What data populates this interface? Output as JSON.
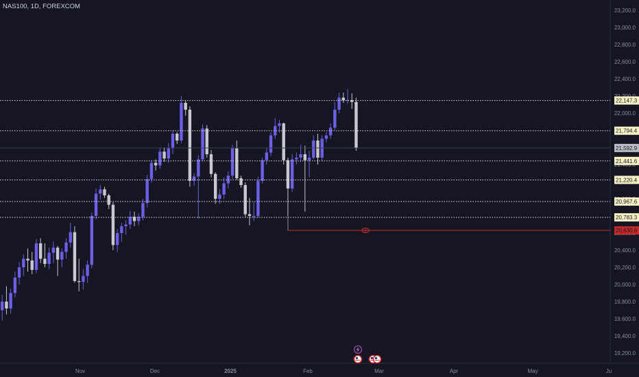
{
  "header": {
    "symbol_title": "NAS100, 1D, FOREXCOM"
  },
  "colors": {
    "background": "#161622",
    "up_candle": "#6a5fe6",
    "down_candle": "#c8c8d0",
    "level_line": "#e0e0e0",
    "level_label_bg": "#f6f2c6",
    "current_price_bg": "#b9bcc4",
    "alert_color": "#c62a2a"
  },
  "price_axis": {
    "ticks": [
      "23,200.0",
      "23,000.0",
      "22,800.0",
      "22,600.0",
      "22,400.0",
      "22,200.0",
      "22,000.0",
      "21,800.0",
      "21,600.0",
      "21,400.0",
      "21,200.0",
      "21,000.0",
      "20,800.0",
      "20,600.0",
      "20,400.0",
      "20,200.0",
      "20,000.0",
      "19,800.0",
      "19,600.0",
      "19,400.0",
      "19,200.0"
    ],
    "tick_values": [
      23200,
      23000,
      22800,
      22600,
      22400,
      22200,
      22000,
      21800,
      21600,
      21400,
      21200,
      21000,
      20800,
      20600,
      20400,
      20200,
      20000,
      19800,
      19600,
      19400,
      19200
    ],
    "range": [
      19080,
      23320
    ]
  },
  "time_axis": {
    "labels": [
      "Nov",
      "Dec",
      "2025",
      "Feb",
      "Mar",
      "Apr",
      "May",
      "Ju"
    ],
    "bold_label": "2025"
  },
  "levels": [
    {
      "value": 22147.3,
      "label": "22,147.3"
    },
    {
      "value": 21794.4,
      "label": "21,794.4"
    },
    {
      "value": 21441.6,
      "label": "21,441.6"
    },
    {
      "value": 21220.4,
      "label": "21,220.4"
    },
    {
      "value": 20967.6,
      "label": "20,967.6"
    },
    {
      "value": 20783.3,
      "label": "20,783.3"
    }
  ],
  "current_price": {
    "value": 21592.9,
    "label": "21,592.9"
  },
  "alert": {
    "value": 20630.6,
    "label": "20,630.6",
    "icon": "eye-icon"
  },
  "event_markers": [
    {
      "icon": "lightning-icon"
    },
    {
      "icon": "us-flag-icon"
    },
    {
      "icon": "us-flag-icon"
    },
    {
      "icon": "us-flag-icon"
    }
  ],
  "chart_data": {
    "type": "candlestick",
    "symbol": "NAS100",
    "interval": "1D",
    "ylim": [
      19080,
      23320
    ],
    "candles": [
      {
        "o": 19700,
        "h": 19880,
        "l": 19580,
        "c": 19800
      },
      {
        "o": 19800,
        "h": 19980,
        "l": 19650,
        "c": 19720
      },
      {
        "o": 19720,
        "h": 19950,
        "l": 19660,
        "c": 19900
      },
      {
        "o": 19900,
        "h": 20150,
        "l": 19850,
        "c": 20080
      },
      {
        "o": 20080,
        "h": 20260,
        "l": 20000,
        "c": 20200
      },
      {
        "o": 20200,
        "h": 20350,
        "l": 20100,
        "c": 20300
      },
      {
        "o": 20300,
        "h": 20420,
        "l": 20150,
        "c": 20280
      },
      {
        "o": 20280,
        "h": 20380,
        "l": 20120,
        "c": 20170
      },
      {
        "o": 20170,
        "h": 20530,
        "l": 20130,
        "c": 20480
      },
      {
        "o": 20480,
        "h": 20540,
        "l": 20250,
        "c": 20300
      },
      {
        "o": 20300,
        "h": 20480,
        "l": 20200,
        "c": 20240
      },
      {
        "o": 20240,
        "h": 20430,
        "l": 20180,
        "c": 20370
      },
      {
        "o": 20370,
        "h": 20500,
        "l": 20250,
        "c": 20430
      },
      {
        "o": 20430,
        "h": 20450,
        "l": 20100,
        "c": 20290
      },
      {
        "o": 20290,
        "h": 20420,
        "l": 20200,
        "c": 20380
      },
      {
        "o": 20380,
        "h": 20540,
        "l": 20300,
        "c": 20490
      },
      {
        "o": 20490,
        "h": 20720,
        "l": 20430,
        "c": 20610
      },
      {
        "o": 20610,
        "h": 20680,
        "l": 20020,
        "c": 20040
      },
      {
        "o": 20040,
        "h": 20300,
        "l": 19920,
        "c": 20030
      },
      {
        "o": 20030,
        "h": 20180,
        "l": 19940,
        "c": 20100
      },
      {
        "o": 20100,
        "h": 20280,
        "l": 20020,
        "c": 20230
      },
      {
        "o": 20230,
        "h": 20840,
        "l": 20190,
        "c": 20800
      },
      {
        "o": 20800,
        "h": 21120,
        "l": 20760,
        "c": 21060
      },
      {
        "o": 21060,
        "h": 21160,
        "l": 20990,
        "c": 21110
      },
      {
        "o": 21110,
        "h": 21140,
        "l": 21010,
        "c": 21040
      },
      {
        "o": 21040,
        "h": 21060,
        "l": 20880,
        "c": 20930
      },
      {
        "o": 20930,
        "h": 20960,
        "l": 20400,
        "c": 20460
      },
      {
        "o": 20460,
        "h": 20650,
        "l": 20380,
        "c": 20600
      },
      {
        "o": 20600,
        "h": 20720,
        "l": 20500,
        "c": 20680
      },
      {
        "o": 20680,
        "h": 20750,
        "l": 20580,
        "c": 20700
      },
      {
        "o": 20700,
        "h": 20860,
        "l": 20650,
        "c": 20790
      },
      {
        "o": 20790,
        "h": 20850,
        "l": 20680,
        "c": 20740
      },
      {
        "o": 20740,
        "h": 20830,
        "l": 20690,
        "c": 20790
      },
      {
        "o": 20790,
        "h": 21000,
        "l": 20750,
        "c": 20950
      },
      {
        "o": 20950,
        "h": 21280,
        "l": 20900,
        "c": 21230
      },
      {
        "o": 21230,
        "h": 21450,
        "l": 21190,
        "c": 21420
      },
      {
        "o": 21420,
        "h": 21460,
        "l": 21330,
        "c": 21390
      },
      {
        "o": 21390,
        "h": 21600,
        "l": 21350,
        "c": 21550
      },
      {
        "o": 21550,
        "h": 21600,
        "l": 21430,
        "c": 21470
      },
      {
        "o": 21470,
        "h": 21650,
        "l": 21420,
        "c": 21590
      },
      {
        "o": 21590,
        "h": 21800,
        "l": 21520,
        "c": 21760
      },
      {
        "o": 21760,
        "h": 21780,
        "l": 21640,
        "c": 21680
      },
      {
        "o": 21680,
        "h": 22200,
        "l": 21650,
        "c": 22120
      },
      {
        "o": 22120,
        "h": 22150,
        "l": 21970,
        "c": 22040
      },
      {
        "o": 22040,
        "h": 22080,
        "l": 21140,
        "c": 21210
      },
      {
        "o": 21210,
        "h": 21300,
        "l": 21150,
        "c": 21260
      },
      {
        "o": 21260,
        "h": 21510,
        "l": 20770,
        "c": 21460
      },
      {
        "o": 21460,
        "h": 21870,
        "l": 21440,
        "c": 21820
      },
      {
        "o": 21820,
        "h": 21860,
        "l": 21480,
        "c": 21520
      },
      {
        "o": 21520,
        "h": 21570,
        "l": 21250,
        "c": 21290
      },
      {
        "o": 21290,
        "h": 21310,
        "l": 20940,
        "c": 21000
      },
      {
        "o": 21000,
        "h": 21110,
        "l": 20940,
        "c": 21050
      },
      {
        "o": 21050,
        "h": 21250,
        "l": 21000,
        "c": 21180
      },
      {
        "o": 21180,
        "h": 21320,
        "l": 21120,
        "c": 21270
      },
      {
        "o": 21270,
        "h": 21630,
        "l": 21230,
        "c": 21590
      },
      {
        "o": 21590,
        "h": 21680,
        "l": 21220,
        "c": 21240
      },
      {
        "o": 21240,
        "h": 21270,
        "l": 21130,
        "c": 21160
      },
      {
        "o": 21160,
        "h": 21190,
        "l": 20790,
        "c": 20820
      },
      {
        "o": 20820,
        "h": 21010,
        "l": 20690,
        "c": 20800
      },
      {
        "o": 20800,
        "h": 20960,
        "l": 20740,
        "c": 20800
      },
      {
        "o": 20800,
        "h": 21260,
        "l": 20780,
        "c": 21210
      },
      {
        "o": 21210,
        "h": 21480,
        "l": 21180,
        "c": 21450
      },
      {
        "o": 21450,
        "h": 21590,
        "l": 21400,
        "c": 21540
      },
      {
        "o": 21540,
        "h": 21780,
        "l": 21500,
        "c": 21740
      },
      {
        "o": 21740,
        "h": 21940,
        "l": 21700,
        "c": 21850
      },
      {
        "o": 21850,
        "h": 21920,
        "l": 21770,
        "c": 21880
      },
      {
        "o": 21880,
        "h": 21890,
        "l": 21400,
        "c": 21450
      },
      {
        "o": 21450,
        "h": 21480,
        "l": 20630,
        "c": 21120
      },
      {
        "o": 21120,
        "h": 21520,
        "l": 21080,
        "c": 21460
      },
      {
        "o": 21460,
        "h": 21540,
        "l": 21400,
        "c": 21480
      },
      {
        "o": 21480,
        "h": 21630,
        "l": 21430,
        "c": 21520
      },
      {
        "o": 21520,
        "h": 21620,
        "l": 20850,
        "c": 21450
      },
      {
        "o": 21450,
        "h": 21560,
        "l": 21250,
        "c": 21480
      },
      {
        "o": 21480,
        "h": 21740,
        "l": 21460,
        "c": 21680
      },
      {
        "o": 21680,
        "h": 21760,
        "l": 21400,
        "c": 21480
      },
      {
        "o": 21480,
        "h": 21740,
        "l": 21440,
        "c": 21700
      },
      {
        "o": 21700,
        "h": 21780,
        "l": 21660,
        "c": 21740
      },
      {
        "o": 21740,
        "h": 21880,
        "l": 21700,
        "c": 21830
      },
      {
        "o": 21830,
        "h": 22130,
        "l": 21800,
        "c": 22040
      },
      {
        "o": 22040,
        "h": 22240,
        "l": 22000,
        "c": 22180
      },
      {
        "o": 22180,
        "h": 22240,
        "l": 22120,
        "c": 22150
      },
      {
        "o": 22150,
        "h": 22280,
        "l": 22110,
        "c": 22150
      },
      {
        "o": 22150,
        "h": 22230,
        "l": 22050,
        "c": 22130
      },
      {
        "o": 22130,
        "h": 22180,
        "l": 21560,
        "c": 21590
      }
    ]
  }
}
